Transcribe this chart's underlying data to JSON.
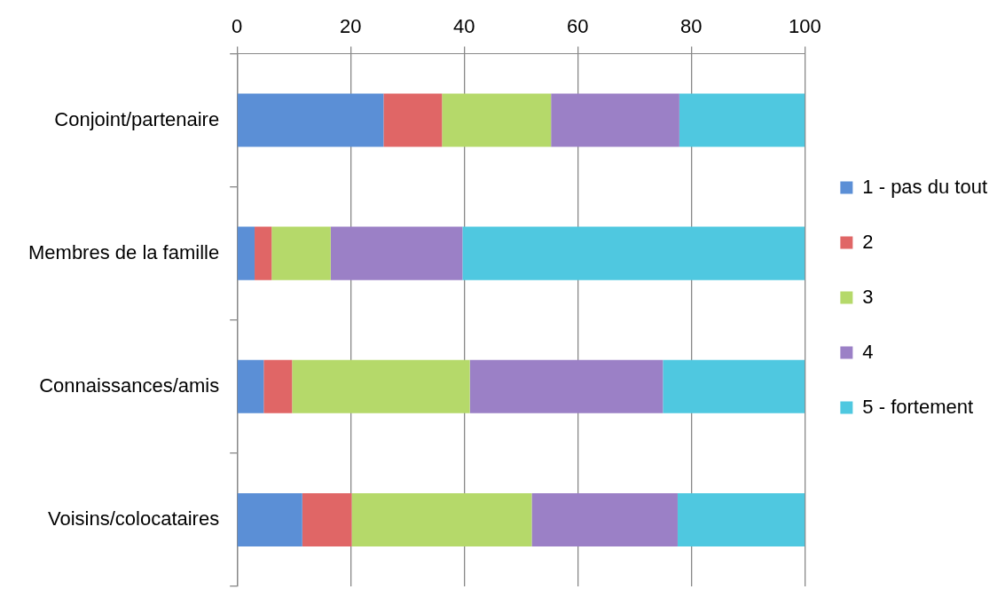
{
  "chart_data": {
    "type": "bar",
    "orientation": "horizontal",
    "stacked": true,
    "categories": [
      "Conjoint/partenaire",
      "Membres de la famille",
      "Connaissances/amis",
      "Voisins/colocataires"
    ],
    "series": [
      {
        "name": "1 - pas du tout",
        "color": "#5b8fd6",
        "values": [
          25.8,
          3.1,
          4.7,
          11.5
        ]
      },
      {
        "name": "2",
        "color": "#e06666",
        "values": [
          10.3,
          3.0,
          5.0,
          8.7
        ]
      },
      {
        "name": "3",
        "color": "#b5d96a",
        "values": [
          19.2,
          10.4,
          31.3,
          31.7
        ]
      },
      {
        "name": "4",
        "color": "#9b80c6",
        "values": [
          22.6,
          23.2,
          34.0,
          25.7
        ]
      },
      {
        "name": "5 - fortement",
        "color": "#4fc8e0",
        "values": [
          22.1,
          60.3,
          25.0,
          22.4
        ]
      }
    ],
    "xlim": [
      0,
      100
    ],
    "xticks": [
      0,
      20,
      40,
      60,
      80,
      100
    ],
    "grid": "x",
    "legend": "right"
  }
}
